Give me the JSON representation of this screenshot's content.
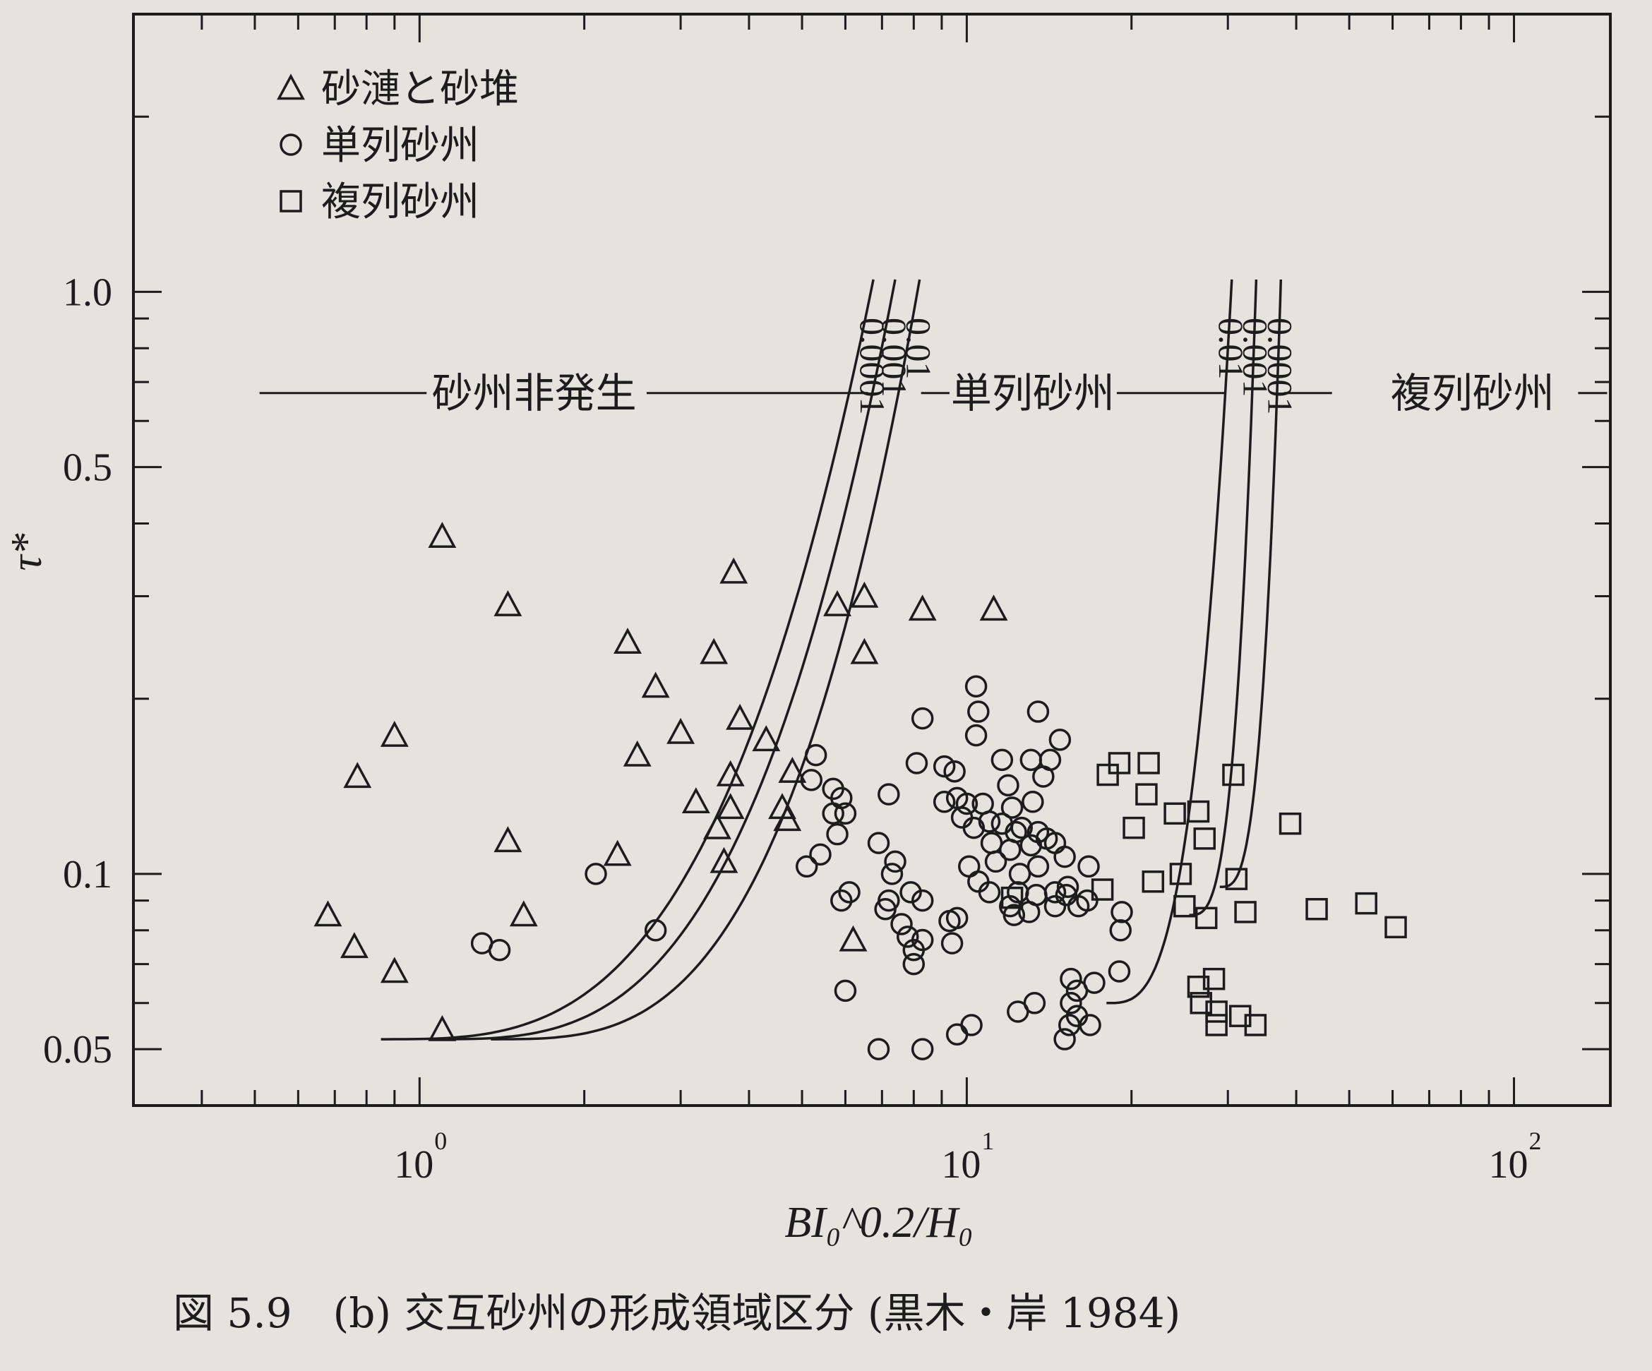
{
  "chart_data": {
    "type": "scatter",
    "title": "",
    "xlabel": "BI₀^0.2/H₀",
    "ylabel": "τ*",
    "xscale": "log",
    "yscale": "log",
    "xlim": [
      0.3,
      150
    ],
    "ylim": [
      0.04,
      3.0
    ],
    "grid": false,
    "legend_placement": "top-left",
    "x_ticks": [
      {
        "value": 1,
        "label": "10",
        "exp": "0"
      },
      {
        "value": 10,
        "label": "10",
        "exp": "1"
      },
      {
        "value": 100,
        "label": "10",
        "exp": "2"
      }
    ],
    "y_ticks": [
      {
        "value": 0.05,
        "label": "0.05"
      },
      {
        "value": 0.1,
        "label": "0.1"
      },
      {
        "value": 0.5,
        "label": "0.5"
      },
      {
        "value": 1.0,
        "label": "1.0"
      }
    ],
    "series": [
      {
        "name": "砂漣と砂堆",
        "marker": "triangle",
        "points": [
          [
            0.68,
            0.085
          ],
          [
            0.76,
            0.075
          ],
          [
            0.9,
            0.068
          ],
          [
            0.77,
            0.147
          ],
          [
            0.9,
            0.173
          ],
          [
            1.1,
            0.054
          ],
          [
            1.1,
            0.38
          ],
          [
            1.45,
            0.29
          ],
          [
            1.45,
            0.114
          ],
          [
            1.55,
            0.085
          ],
          [
            2.4,
            0.25
          ],
          [
            2.5,
            0.16
          ],
          [
            2.3,
            0.108
          ],
          [
            2.7,
            0.21
          ],
          [
            3.0,
            0.175
          ],
          [
            3.2,
            0.133
          ],
          [
            3.5,
            0.12
          ],
          [
            3.6,
            0.105
          ],
          [
            3.45,
            0.24
          ],
          [
            3.7,
            0.148
          ],
          [
            3.7,
            0.13
          ],
          [
            3.75,
            0.33
          ],
          [
            3.85,
            0.185
          ],
          [
            4.3,
            0.17
          ],
          [
            4.8,
            0.15
          ],
          [
            4.6,
            0.13
          ],
          [
            4.7,
            0.124
          ],
          [
            5.8,
            0.29
          ],
          [
            6.5,
            0.3
          ],
          [
            6.5,
            0.24
          ],
          [
            6.2,
            0.077
          ],
          [
            8.3,
            0.285
          ],
          [
            11.2,
            0.285
          ]
        ]
      },
      {
        "name": "単列砂州",
        "marker": "circle",
        "points": [
          [
            1.3,
            0.076
          ],
          [
            1.4,
            0.074
          ],
          [
            2.1,
            0.1
          ],
          [
            2.7,
            0.08
          ],
          [
            5.3,
            0.16
          ],
          [
            5.2,
            0.145
          ],
          [
            5.1,
            0.103
          ],
          [
            5.4,
            0.108
          ],
          [
            5.7,
            0.14
          ],
          [
            5.7,
            0.127
          ],
          [
            5.9,
            0.135
          ],
          [
            5.8,
            0.117
          ],
          [
            6.0,
            0.127
          ],
          [
            6.1,
            0.093
          ],
          [
            5.9,
            0.09
          ],
          [
            6.0,
            0.063
          ],
          [
            6.9,
            0.113
          ],
          [
            7.1,
            0.087
          ],
          [
            6.9,
            0.05
          ],
          [
            7.2,
            0.137
          ],
          [
            7.3,
            0.1
          ],
          [
            7.4,
            0.105
          ],
          [
            7.2,
            0.09
          ],
          [
            7.6,
            0.082
          ],
          [
            7.8,
            0.078
          ],
          [
            8.0,
            0.074
          ],
          [
            8.0,
            0.07
          ],
          [
            8.3,
            0.077
          ],
          [
            7.9,
            0.093
          ],
          [
            8.3,
            0.09
          ],
          [
            8.1,
            0.155
          ],
          [
            8.3,
            0.185
          ],
          [
            8.3,
            0.05
          ],
          [
            9.1,
            0.153
          ],
          [
            9.5,
            0.15
          ],
          [
            9.1,
            0.133
          ],
          [
            9.3,
            0.083
          ],
          [
            9.4,
            0.076
          ],
          [
            9.6,
            0.084
          ],
          [
            9.6,
            0.053
          ],
          [
            9.6,
            0.135
          ],
          [
            9.8,
            0.125
          ],
          [
            10.0,
            0.132
          ],
          [
            10.3,
            0.12
          ],
          [
            10.1,
            0.103
          ],
          [
            10.5,
            0.097
          ],
          [
            10.2,
            0.055
          ],
          [
            10.4,
            0.21
          ],
          [
            10.5,
            0.19
          ],
          [
            10.4,
            0.173
          ],
          [
            10.7,
            0.132
          ],
          [
            11.0,
            0.123
          ],
          [
            11.1,
            0.113
          ],
          [
            11.3,
            0.105
          ],
          [
            11.0,
            0.093
          ],
          [
            11.6,
            0.157
          ],
          [
            11.9,
            0.142
          ],
          [
            12.1,
            0.13
          ],
          [
            11.6,
            0.122
          ],
          [
            12.0,
            0.11
          ],
          [
            12.3,
            0.118
          ],
          [
            12.6,
            0.12
          ],
          [
            12.5,
            0.1
          ],
          [
            12.4,
            0.093
          ],
          [
            12.0,
            0.088
          ],
          [
            12.2,
            0.085
          ],
          [
            12.4,
            0.058
          ],
          [
            13.1,
            0.157
          ],
          [
            13.2,
            0.133
          ],
          [
            13.5,
            0.103
          ],
          [
            13.5,
            0.118
          ],
          [
            13.1,
            0.112
          ],
          [
            13.0,
            0.086
          ],
          [
            13.4,
            0.092
          ],
          [
            13.3,
            0.06
          ],
          [
            13.5,
            0.19
          ],
          [
            13.8,
            0.147
          ],
          [
            14.2,
            0.157
          ],
          [
            14.0,
            0.115
          ],
          [
            14.5,
            0.113
          ],
          [
            14.5,
            0.093
          ],
          [
            14.5,
            0.088
          ],
          [
            15.1,
            0.107
          ],
          [
            15.3,
            0.095
          ],
          [
            15.2,
            0.092
          ],
          [
            15.5,
            0.066
          ],
          [
            15.5,
            0.06
          ],
          [
            15.1,
            0.052
          ],
          [
            15.4,
            0.055
          ],
          [
            15.9,
            0.063
          ],
          [
            15.9,
            0.057
          ],
          [
            16.0,
            0.088
          ],
          [
            16.6,
            0.09
          ],
          [
            16.7,
            0.103
          ],
          [
            16.8,
            0.055
          ],
          [
            17.1,
            0.065
          ],
          [
            14.8,
            0.17
          ],
          [
            19.2,
            0.086
          ],
          [
            19.1,
            0.08
          ],
          [
            19.0,
            0.068
          ]
        ]
      },
      {
        "name": "複列砂州",
        "marker": "square",
        "points": [
          [
            12.1,
            0.091
          ],
          [
            18.1,
            0.148
          ],
          [
            19.0,
            0.155
          ],
          [
            17.7,
            0.094
          ],
          [
            20.2,
            0.12
          ],
          [
            21.3,
            0.137
          ],
          [
            21.5,
            0.155
          ],
          [
            21.9,
            0.097
          ],
          [
            24.0,
            0.127
          ],
          [
            24.6,
            0.1
          ],
          [
            25.0,
            0.088
          ],
          [
            26.5,
            0.128
          ],
          [
            27.2,
            0.115
          ],
          [
            26.5,
            0.064
          ],
          [
            26.8,
            0.06
          ],
          [
            27.4,
            0.084
          ],
          [
            28.3,
            0.066
          ],
          [
            28.6,
            0.058
          ],
          [
            28.6,
            0.055
          ],
          [
            30.7,
            0.148
          ],
          [
            31.1,
            0.098
          ],
          [
            31.6,
            0.057
          ],
          [
            32.3,
            0.086
          ],
          [
            33.7,
            0.055
          ],
          [
            39.0,
            0.122
          ],
          [
            43.6,
            0.087
          ],
          [
            53.7,
            0.089
          ],
          [
            60.8,
            0.081
          ]
        ]
      }
    ],
    "boundary_curves": {
      "left": [
        {
          "label": "0.0001",
          "x_asymptote": 6.75,
          "x_base": 0.85,
          "y_base": 0.052
        },
        {
          "label": "0.001",
          "x_asymptote": 7.4,
          "x_base": 1.05,
          "y_base": 0.052
        },
        {
          "label": "0.01",
          "x_asymptote": 8.2,
          "x_base": 1.35,
          "y_base": 0.052
        }
      ],
      "right": [
        {
          "label": "0.01",
          "x_asymptote": 30.5,
          "x_base": 18.0,
          "y_base": 0.06
        },
        {
          "label": "0.001",
          "x_asymptote": 33.8,
          "x_base": 25.5,
          "y_base": 0.085
        },
        {
          "label": "0.0001",
          "x_asymptote": 37.5,
          "x_base": 29.0,
          "y_base": 0.095
        }
      ]
    },
    "regions": [
      {
        "label": "砂州非発生"
      },
      {
        "label": "単列砂州"
      },
      {
        "label": "複列砂州"
      }
    ]
  },
  "caption": "図 5.9　(b) 交互砂州の形成領域区分 (黒木・岸 1984)"
}
